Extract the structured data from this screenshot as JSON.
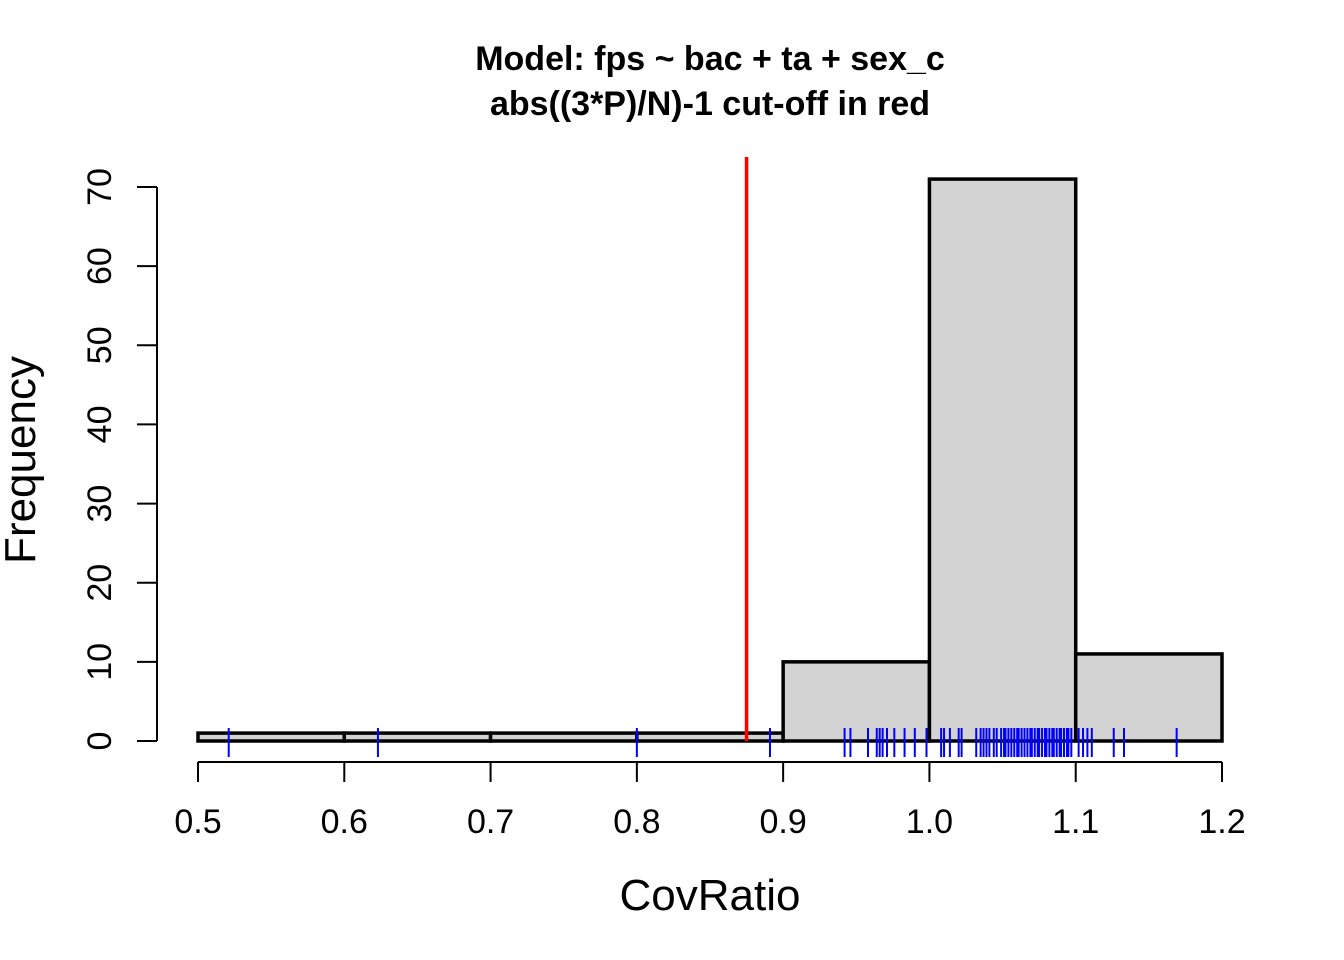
{
  "chart_data": {
    "type": "bar",
    "title": "Model: fps ~ bac + ta + sex_c",
    "subtitle": "abs((3*P)/N)-1 cut-off in red",
    "xlabel": "CovRatio",
    "ylabel": "Frequency",
    "xlim": [
      0.5,
      1.2
    ],
    "ylim": [
      0,
      70
    ],
    "x_ticks": [
      "0.5",
      "0.6",
      "0.7",
      "0.8",
      "0.9",
      "1.0",
      "1.1",
      "1.2"
    ],
    "y_ticks": [
      "0",
      "10",
      "20",
      "30",
      "40",
      "50",
      "60",
      "70"
    ],
    "bins": [
      {
        "from": 0.5,
        "to": 0.6,
        "count": 1
      },
      {
        "from": 0.6,
        "to": 0.7,
        "count": 1
      },
      {
        "from": 0.7,
        "to": 0.8,
        "count": 1
      },
      {
        "from": 0.8,
        "to": 0.9,
        "count": 1
      },
      {
        "from": 0.9,
        "to": 1.0,
        "count": 10
      },
      {
        "from": 1.0,
        "to": 1.1,
        "count": 71
      },
      {
        "from": 1.1,
        "to": 1.2,
        "count": 11
      }
    ],
    "cutoff": 0.875,
    "rug": [
      0.521,
      0.623,
      0.8,
      0.891,
      0.942,
      0.946,
      0.958,
      0.964,
      0.966,
      0.968,
      0.971,
      0.976,
      0.983,
      0.99,
      0.998,
      1.008,
      1.01,
      1.014,
      1.02,
      1.022,
      1.032,
      1.035,
      1.037,
      1.039,
      1.041,
      1.044,
      1.046,
      1.049,
      1.051,
      1.052,
      1.054,
      1.056,
      1.058,
      1.06,
      1.061,
      1.063,
      1.065,
      1.067,
      1.069,
      1.07,
      1.072,
      1.074,
      1.075,
      1.077,
      1.079,
      1.08,
      1.082,
      1.084,
      1.085,
      1.087,
      1.089,
      1.09,
      1.092,
      1.094,
      1.095,
      1.097,
      1.102,
      1.105,
      1.108,
      1.111,
      1.126,
      1.133,
      1.169
    ],
    "colors": {
      "bar_fill": "#d3d3d3",
      "bar_stroke": "#000000",
      "cutoff_line": "#ff0000",
      "rug": "#0000ff"
    }
  }
}
